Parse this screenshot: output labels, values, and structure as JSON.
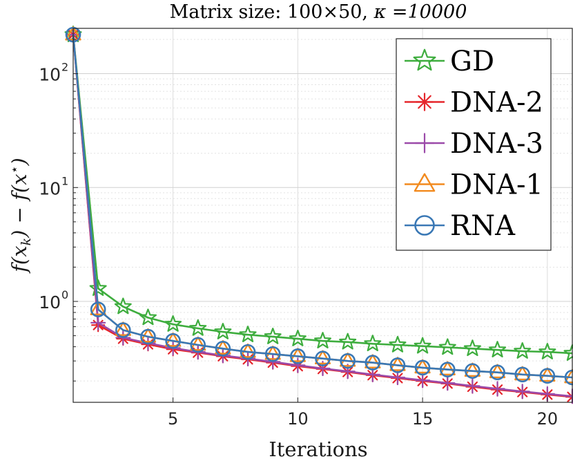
{
  "chart_data": {
    "type": "line",
    "title_prefix": "Matrix size:  100×50, ",
    "title_kappa": "κ =10000",
    "xlabel": "Iterations",
    "ylabel": "f(x_k) − f(x*)",
    "ylabel_parts": {
      "f1": "f(",
      "x": "x",
      "k": "k",
      "mid": ") − f(",
      "x2": "x",
      "star": "⋆",
      "close": ")"
    },
    "yscale": "log",
    "xlim": [
      1,
      21
    ],
    "ylim": [
      0.13,
      250
    ],
    "xticks": [
      5,
      10,
      15,
      20
    ],
    "xtick_labels": [
      "5",
      "10",
      "15",
      "20"
    ],
    "yticks": [
      1,
      10,
      100
    ],
    "ytick_labels": [
      {
        "base": "10",
        "exp": "0"
      },
      {
        "base": "10",
        "exp": "1"
      },
      {
        "base": "10",
        "exp": "2"
      }
    ],
    "grid": true,
    "legend_position": "top-right",
    "x": [
      1,
      2,
      3,
      4,
      5,
      6,
      7,
      8,
      9,
      10,
      11,
      12,
      13,
      14,
      15,
      16,
      17,
      18,
      19,
      20,
      21
    ],
    "series": [
      {
        "name": "GD",
        "color": "#3ead3e",
        "marker": "star",
        "values": [
          220,
          1.3,
          0.9,
          0.72,
          0.63,
          0.58,
          0.54,
          0.51,
          0.49,
          0.47,
          0.45,
          0.44,
          0.425,
          0.415,
          0.405,
          0.395,
          0.385,
          0.375,
          0.365,
          0.36,
          0.35
        ]
      },
      {
        "name": "DNA-2",
        "color": "#e5262b",
        "marker": "asterisk",
        "values": [
          220,
          0.62,
          0.47,
          0.42,
          0.38,
          0.355,
          0.33,
          0.31,
          0.29,
          0.27,
          0.255,
          0.24,
          0.225,
          0.212,
          0.2,
          0.19,
          0.178,
          0.168,
          0.16,
          0.152,
          0.145
        ]
      },
      {
        "name": "DNA-3",
        "color": "#9b4aa9",
        "marker": "plus",
        "values": [
          220,
          0.65,
          0.48,
          0.43,
          0.39,
          0.36,
          0.335,
          0.315,
          0.295,
          0.275,
          0.258,
          0.243,
          0.228,
          0.215,
          0.203,
          0.192,
          0.181,
          0.171,
          0.162,
          0.154,
          0.147
        ]
      },
      {
        "name": "DNA-1",
        "color": "#f28a1e",
        "marker": "triangle",
        "values": [
          220,
          0.85,
          0.56,
          0.49,
          0.45,
          0.415,
          0.385,
          0.36,
          0.345,
          0.33,
          0.315,
          0.3,
          0.29,
          0.275,
          0.262,
          0.252,
          0.245,
          0.238,
          0.228,
          0.222,
          0.215
        ]
      },
      {
        "name": "RNA",
        "color": "#3a78b5",
        "marker": "circle",
        "values": [
          220,
          0.85,
          0.56,
          0.49,
          0.45,
          0.415,
          0.385,
          0.36,
          0.345,
          0.33,
          0.315,
          0.3,
          0.29,
          0.275,
          0.262,
          0.252,
          0.245,
          0.238,
          0.228,
          0.222,
          0.215
        ]
      }
    ]
  }
}
